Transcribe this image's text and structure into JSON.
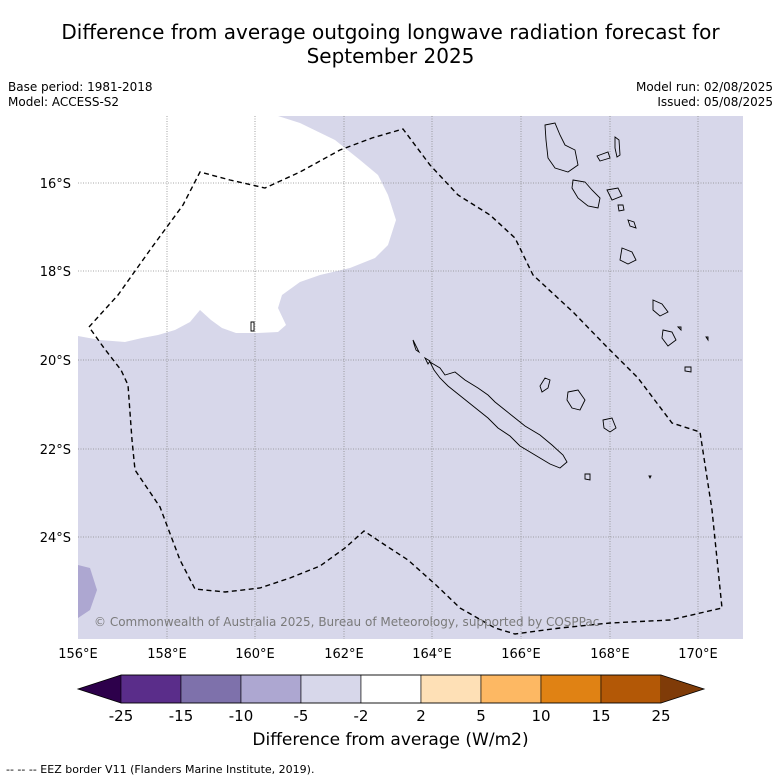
{
  "title_line1": "Difference from average outgoing longwave radiation forecast for",
  "title_line2": "September 2025",
  "base_period": "Base period: 1981-2018",
  "model": "Model: ACCESS-S2",
  "model_run": "Model run: 02/08/2025",
  "issued": "Issued: 05/08/2025",
  "copyright": "© Commonwealth of Australia 2025, Bureau of Meteorology, supported by COSPPac",
  "lon_labels": [
    "156°E",
    "158°E",
    "160°E",
    "162°E",
    "164°E",
    "166°E",
    "168°E",
    "170°E"
  ],
  "lat_labels": [
    "16°S",
    "18°S",
    "20°S",
    "22°S",
    "24°S"
  ],
  "colorbar": {
    "title": "Difference from average (W/m2)",
    "tick_labels": [
      "-25",
      "-15",
      "-10",
      "-5",
      "-2",
      "2",
      "5",
      "10",
      "15",
      "25"
    ],
    "colors": [
      "#5a2d8a",
      "#7e71ab",
      "#ada7d1",
      "#d7d7ea",
      "#ffffff",
      "#fee0b6",
      "#fdb863",
      "#e08214",
      "#b35806"
    ],
    "under_color": "#2d004b",
    "over_color": "#7f3b08"
  },
  "footnote": "--  --  -- EEZ border V11 (Flanders Marine Institute, 2019).",
  "colors": {
    "anomaly_light": "#d7d7ea",
    "anomaly_mid": "#ada7d1"
  }
}
